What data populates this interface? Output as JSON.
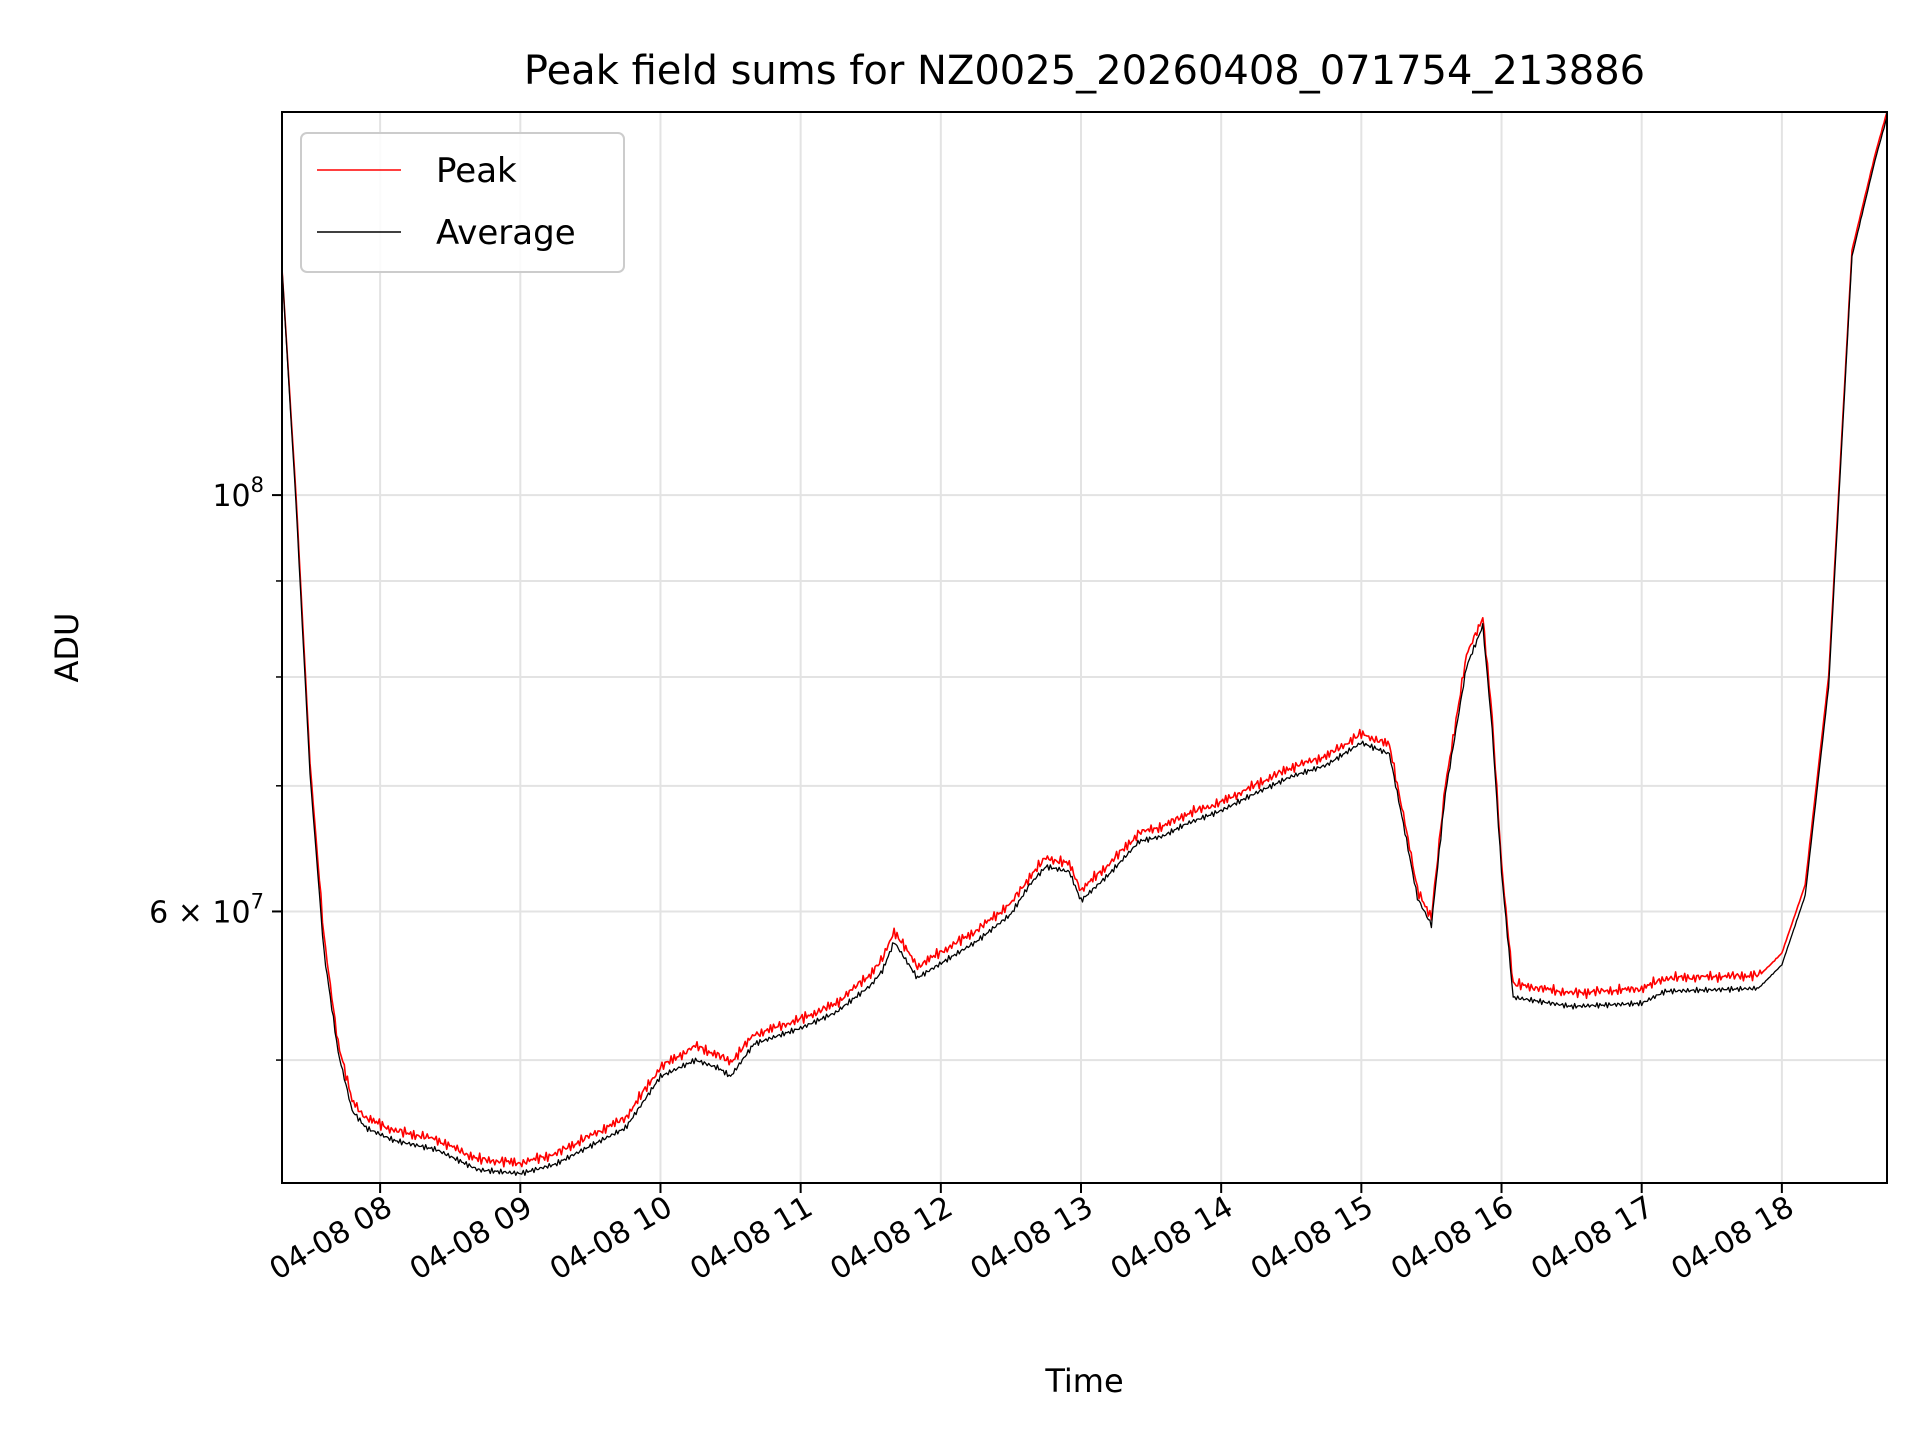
{
  "chart_data": {
    "type": "line",
    "title": "Peak field sums for NZ0025_20260408_071754_213886",
    "xlabel": "Time",
    "ylabel": "ADU",
    "y_scale": "log",
    "ylim": [
      43000000,
      160000000
    ],
    "xlim": [
      "2026-04-08 07:18",
      "2026-04-08 18:45"
    ],
    "grid": true,
    "legend_position": "top-left",
    "x_ticks": [
      {
        "t": "2026-04-08 08:00",
        "label": "04-08 08"
      },
      {
        "t": "2026-04-08 09:00",
        "label": "04-08 09"
      },
      {
        "t": "2026-04-08 10:00",
        "label": "04-08 10"
      },
      {
        "t": "2026-04-08 11:00",
        "label": "04-08 11"
      },
      {
        "t": "2026-04-08 12:00",
        "label": "04-08 12"
      },
      {
        "t": "2026-04-08 13:00",
        "label": "04-08 13"
      },
      {
        "t": "2026-04-08 14:00",
        "label": "04-08 14"
      },
      {
        "t": "2026-04-08 15:00",
        "label": "04-08 15"
      },
      {
        "t": "2026-04-08 16:00",
        "label": "04-08 16"
      },
      {
        "t": "2026-04-08 17:00",
        "label": "04-08 17"
      },
      {
        "t": "2026-04-08 18:00",
        "label": "04-08 18"
      }
    ],
    "y_major_ticks": [
      {
        "v": 100000000,
        "base": "10",
        "exp": "8",
        "prefix": ""
      },
      {
        "v": 60000000,
        "base": "10",
        "exp": "7",
        "prefix": "6 × "
      }
    ],
    "y_minor_ticks": [
      50000000,
      70000000,
      80000000,
      90000000
    ],
    "x": [
      "2026-04-08 07:18",
      "2026-04-08 07:24",
      "2026-04-08 07:30",
      "2026-04-08 07:36",
      "2026-04-08 07:42",
      "2026-04-08 07:48",
      "2026-04-08 07:54",
      "2026-04-08 08:06",
      "2026-04-08 08:24",
      "2026-04-08 08:42",
      "2026-04-08 09:00",
      "2026-04-08 09:15",
      "2026-04-08 09:30",
      "2026-04-08 09:45",
      "2026-04-08 10:00",
      "2026-04-08 10:15",
      "2026-04-08 10:25",
      "2026-04-08 10:30",
      "2026-04-08 10:40",
      "2026-04-08 11:00",
      "2026-04-08 11:15",
      "2026-04-08 11:30",
      "2026-04-08 11:35",
      "2026-04-08 11:40",
      "2026-04-08 11:50",
      "2026-04-08 11:55",
      "2026-04-08 12:15",
      "2026-04-08 12:30",
      "2026-04-08 12:38",
      "2026-04-08 12:45",
      "2026-04-08 12:55",
      "2026-04-08 13:00",
      "2026-04-08 13:12",
      "2026-04-08 13:25",
      "2026-04-08 13:35",
      "2026-04-08 13:45",
      "2026-04-08 14:00",
      "2026-04-08 14:15",
      "2026-04-08 14:30",
      "2026-04-08 14:45",
      "2026-04-08 15:00",
      "2026-04-08 15:12",
      "2026-04-08 15:18",
      "2026-04-08 15:24",
      "2026-04-08 15:30",
      "2026-04-08 15:36",
      "2026-04-08 15:45",
      "2026-04-08 15:52",
      "2026-04-08 15:56",
      "2026-04-08 16:00",
      "2026-04-08 16:05",
      "2026-04-08 16:30",
      "2026-04-08 17:00",
      "2026-04-08 17:10",
      "2026-04-08 17:30",
      "2026-04-08 17:50",
      "2026-04-08 18:00",
      "2026-04-08 18:10",
      "2026-04-08 18:20",
      "2026-04-08 18:30",
      "2026-04-08 18:40",
      "2026-04-08 18:45"
    ],
    "series": [
      {
        "name": "Peak",
        "color": "#ff0000",
        "values": [
          132000000,
          100000000,
          72000000,
          58000000,
          51000000,
          47500000,
          46500000,
          45800000,
          45300000,
          44200000,
          44000000,
          44500000,
          45500000,
          46500000,
          49500000,
          50800000,
          50200000,
          49800000,
          51500000,
          52500000,
          53500000,
          55500000,
          56500000,
          58500000,
          56000000,
          56500000,
          58500000,
          60500000,
          62500000,
          64000000,
          63500000,
          61500000,
          63500000,
          66000000,
          66500000,
          67500000,
          68500000,
          70000000,
          71500000,
          72500000,
          74500000,
          73500000,
          67500000,
          61500000,
          59500000,
          70000000,
          82000000,
          86000000,
          76000000,
          63500000,
          54800000,
          54200000,
          54500000,
          55200000,
          55300000,
          55400000,
          57000000,
          62000000,
          80000000,
          135000000,
          152000000,
          160000000
        ]
      },
      {
        "name": "Average",
        "color": "#000000",
        "values": [
          132000000,
          99000000,
          71000000,
          57000000,
          50500000,
          47000000,
          46000000,
          45300000,
          44800000,
          43700000,
          43500000,
          44000000,
          45000000,
          46000000,
          49000000,
          50000000,
          49500000,
          49000000,
          51000000,
          52000000,
          53000000,
          54800000,
          55800000,
          57800000,
          55300000,
          55800000,
          57800000,
          59800000,
          62000000,
          63400000,
          63000000,
          60800000,
          62800000,
          65400000,
          65800000,
          66800000,
          67900000,
          69400000,
          70800000,
          71800000,
          73800000,
          72800000,
          66800000,
          61000000,
          59000000,
          69400000,
          81000000,
          85200000,
          75000000,
          63000000,
          54000000,
          53400000,
          53600000,
          54400000,
          54500000,
          54600000,
          56200000,
          61200000,
          79000000,
          134000000,
          151000000,
          159000000
        ]
      }
    ]
  }
}
